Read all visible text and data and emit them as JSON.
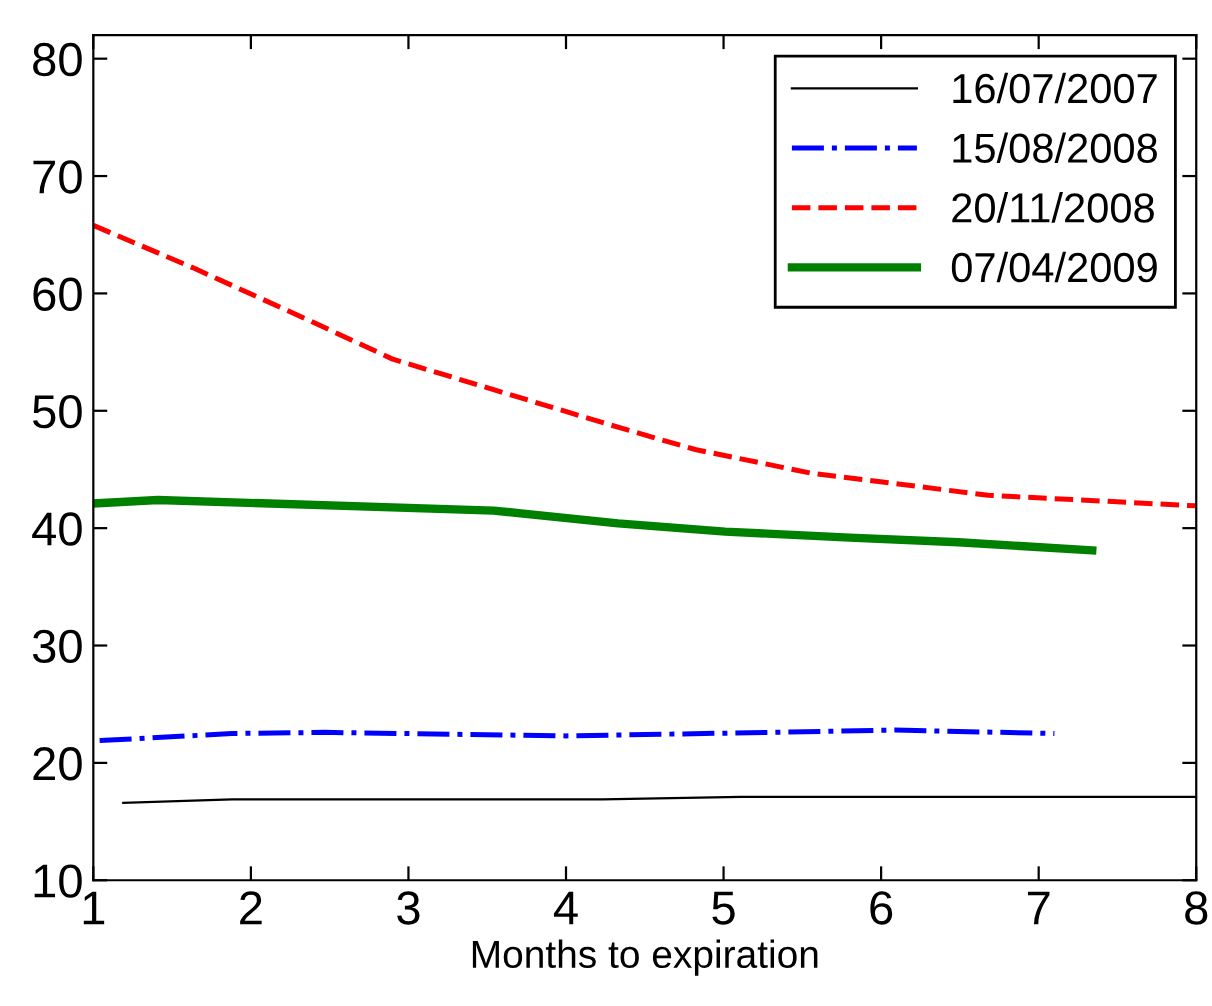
{
  "chart_data": {
    "type": "line",
    "xlabel": "Months to expiration",
    "xlim": [
      1,
      8
    ],
    "xticks": [
      1,
      2,
      3,
      4,
      5,
      6,
      7,
      8
    ],
    "ylim": [
      10,
      82
    ],
    "yticks": [
      10,
      20,
      30,
      40,
      50,
      60,
      70,
      80
    ],
    "grid": false,
    "legend": "top right",
    "series": [
      {
        "name": "16/07/2007",
        "color": "#000000",
        "line_style": "solid",
        "x": [
          1.19,
          1.88,
          4.23,
          5.11,
          8
        ],
        "values": [
          16.6,
          16.9,
          16.9,
          17.1,
          17.1
        ]
      },
      {
        "name": "15/08/2008",
        "color": "#0000ff",
        "line_style": "dashdot",
        "x": [
          1.04,
          1.88,
          2.47,
          4.0,
          5.31,
          6.09,
          7.1
        ],
        "values": [
          21.9,
          22.5,
          22.6,
          22.3,
          22.6,
          22.8,
          22.5
        ]
      },
      {
        "name": "20/11/2008",
        "color": "#ff0000",
        "line_style": "dashed",
        "x": [
          1,
          1.63,
          2.37,
          2.9,
          3.54,
          4.33,
          4.82,
          5.55,
          6.68,
          8
        ],
        "values": [
          65.8,
          62.2,
          57.7,
          54.4,
          51.8,
          48.6,
          46.7,
          44.7,
          42.8,
          41.9
        ]
      },
      {
        "name": "07/04/2009",
        "color": "#008000",
        "line_style": "solid",
        "x": [
          1,
          1.41,
          3.54,
          4.33,
          5.01,
          5.8,
          6.49,
          7.34
        ],
        "values": [
          42.1,
          42.4,
          41.5,
          40.4,
          39.7,
          39.2,
          38.8,
          38.1
        ]
      }
    ]
  }
}
